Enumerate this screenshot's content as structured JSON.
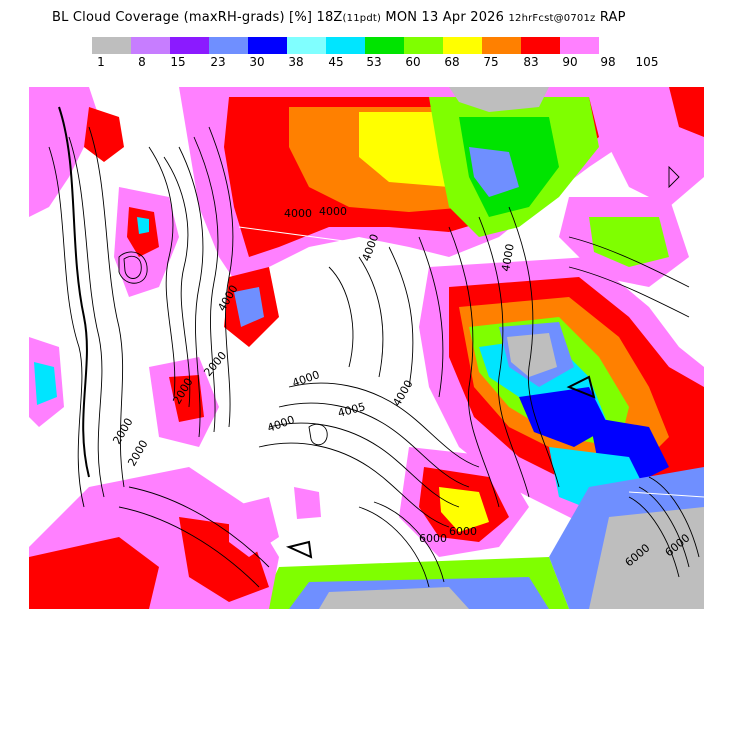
{
  "header": {
    "title_main": "BL Cloud Coverage (maxRH-grads) [%] 18Z",
    "title_fcst_hour": "(11pdt)",
    "title_date": " MON 13 Apr 2026 ",
    "title_run": "12hrFcst@0701z",
    "title_model": " RAP"
  },
  "legend": {
    "colors": [
      "#bebebe",
      "#c77dff",
      "#8b1aff",
      "#6f8fff",
      "#0000ff",
      "#80ffff",
      "#00e5ff",
      "#00e400",
      "#7fff00",
      "#ffff00",
      "#ff8000",
      "#ff0000",
      "#ff80ff"
    ],
    "labels": [
      "1",
      "8",
      "15",
      "23",
      "30",
      "38",
      "45",
      "53",
      "60",
      "68",
      "75",
      "83",
      "90",
      "98",
      "105"
    ]
  },
  "map": {
    "contour_labels": [
      "4000",
      "4000",
      "4000",
      "4000",
      "4000",
      "4000",
      "4000",
      "4005",
      "2000",
      "2000",
      "2000",
      "2000",
      "6000",
      "6000",
      "6000",
      "6000",
      "4000"
    ]
  }
}
